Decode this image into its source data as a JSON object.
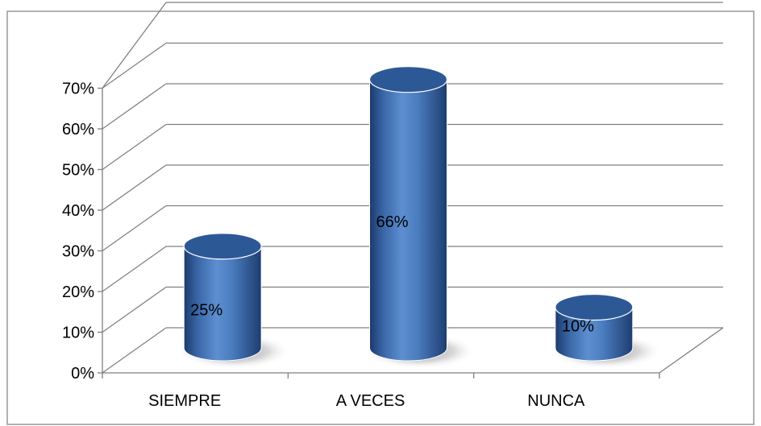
{
  "chart_data": {
    "type": "bar",
    "style": "3d-cylinder",
    "categories": [
      "SIEMPRE",
      "A VECES",
      "NUNCA"
    ],
    "values": [
      25,
      66,
      10
    ],
    "data_labels": [
      "25%",
      "66%",
      "10%"
    ],
    "y_ticks": [
      "0%",
      "10%",
      "20%",
      "30%",
      "40%",
      "50%",
      "60%",
      "70%"
    ],
    "ylim": [
      0,
      70
    ],
    "grid": true,
    "legend": "none",
    "colors": {
      "bar": "#4f81bd",
      "bar_dark": "#1f3f72",
      "bar_top": "#2d5896",
      "grid": "#808080",
      "frame": "#888888"
    }
  }
}
